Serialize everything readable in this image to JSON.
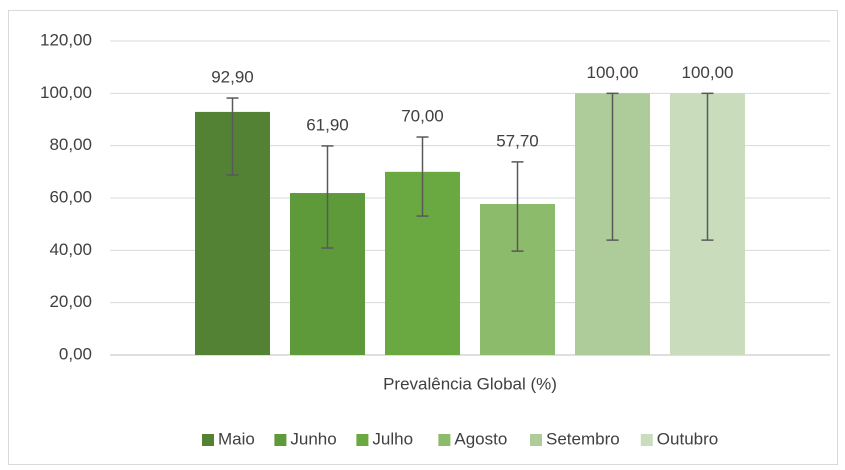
{
  "chart_data": {
    "type": "bar",
    "categories": [
      "Prevalência Global (%)"
    ],
    "series": [
      {
        "name": "Maio",
        "color": "#548235",
        "values": [
          92.9
        ],
        "value_labels": [
          "92,90"
        ],
        "error_plus": [
          5.3
        ],
        "error_minus": [
          24.1
        ]
      },
      {
        "name": "Junho",
        "color": "#5f9a3a",
        "values": [
          61.9
        ],
        "value_labels": [
          "61,90"
        ],
        "error_plus": [
          18
        ],
        "error_minus": [
          21
        ]
      },
      {
        "name": "Julho",
        "color": "#6aa842",
        "values": [
          70
        ],
        "value_labels": [
          "70,00"
        ],
        "error_plus": [
          13.3
        ],
        "error_minus": [
          16.9
        ]
      },
      {
        "name": "Agosto",
        "color": "#8dbb6c",
        "values": [
          57.7
        ],
        "value_labels": [
          "57,70"
        ],
        "error_plus": [
          16.1
        ],
        "error_minus": [
          18
        ]
      },
      {
        "name": "Setembro",
        "color": "#aecb9a",
        "values": [
          100
        ],
        "value_labels": [
          "100,00"
        ],
        "error_plus": [
          0
        ],
        "error_minus": [
          56.1
        ]
      },
      {
        "name": "Outubro",
        "color": "#c9ddbd",
        "values": [
          100
        ],
        "value_labels": [
          "100,00"
        ],
        "error_plus": [
          0
        ],
        "error_minus": [
          56.1
        ]
      }
    ],
    "ylim": [
      0,
      120
    ],
    "yticks": [
      {
        "value": 0,
        "label": "0,00"
      },
      {
        "value": 20,
        "label": "20,00"
      },
      {
        "value": 40,
        "label": "40,00"
      },
      {
        "value": 60,
        "label": "60,00"
      },
      {
        "value": 80,
        "label": "80,00"
      },
      {
        "value": 100,
        "label": "100,00"
      },
      {
        "value": 120,
        "label": "120,00"
      }
    ],
    "grid": true,
    "legend": "bottom"
  }
}
